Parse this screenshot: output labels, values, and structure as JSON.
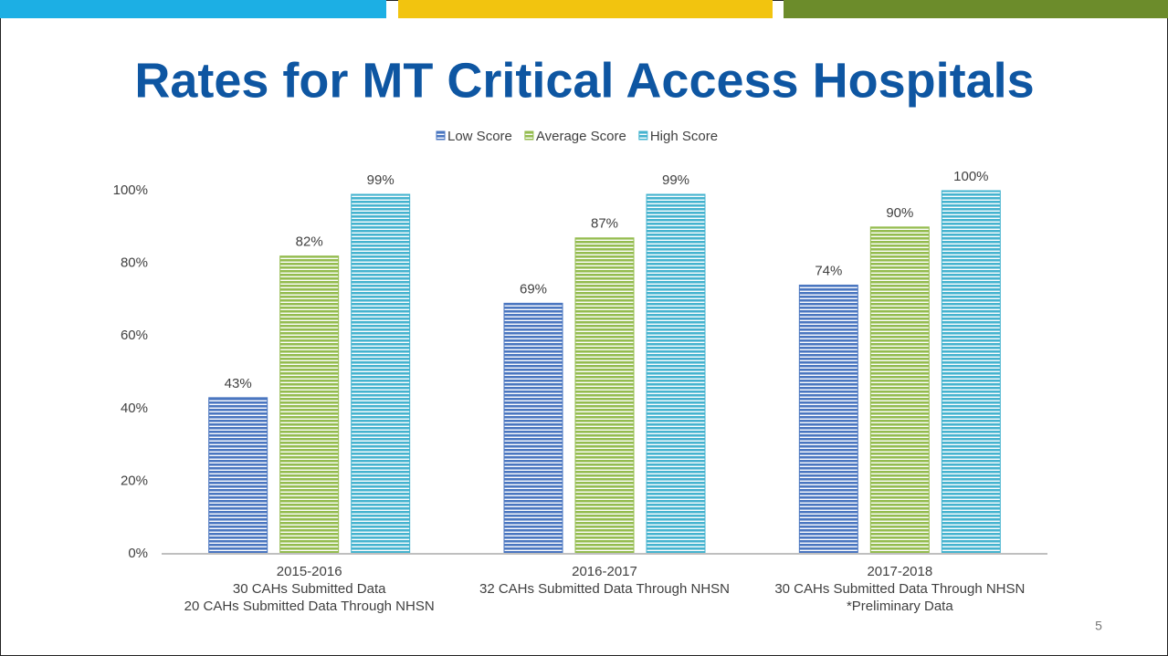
{
  "page_number": "5",
  "chart_data": {
    "type": "bar",
    "title": "Rates for MT Critical Access Hospitals",
    "categories": [
      [
        "2015-2016",
        "30 CAHs Submitted Data",
        "20 CAHs Submitted Data Through NHSN"
      ],
      [
        "2016-2017",
        "32 CAHs Submitted Data Through NHSN"
      ],
      [
        "2017-2018",
        "30 CAHs Submitted Data Through NHSN",
        "*Preliminary Data"
      ]
    ],
    "series": [
      {
        "name": "Low Score",
        "color": "#4a76c0",
        "values": [
          43,
          69,
          74
        ],
        "value_labels": [
          "43%",
          "69%",
          "74%"
        ]
      },
      {
        "name": "Average Score",
        "color": "#94bc4f",
        "values": [
          82,
          87,
          90
        ],
        "value_labels": [
          "82%",
          "87%",
          "90%"
        ]
      },
      {
        "name": "High Score",
        "color": "#45b3cf",
        "values": [
          99,
          99,
          100
        ],
        "value_labels": [
          "99%",
          "99%",
          "100%"
        ]
      }
    ],
    "ylim": [
      0,
      100
    ],
    "yticks": [
      {
        "value": 0,
        "label": "0%"
      },
      {
        "value": 20,
        "label": "20%"
      },
      {
        "value": 40,
        "label": "40%"
      },
      {
        "value": 60,
        "label": "60%"
      },
      {
        "value": 80,
        "label": "80%"
      },
      {
        "value": 100,
        "label": "100%"
      }
    ],
    "legend": "top"
  }
}
